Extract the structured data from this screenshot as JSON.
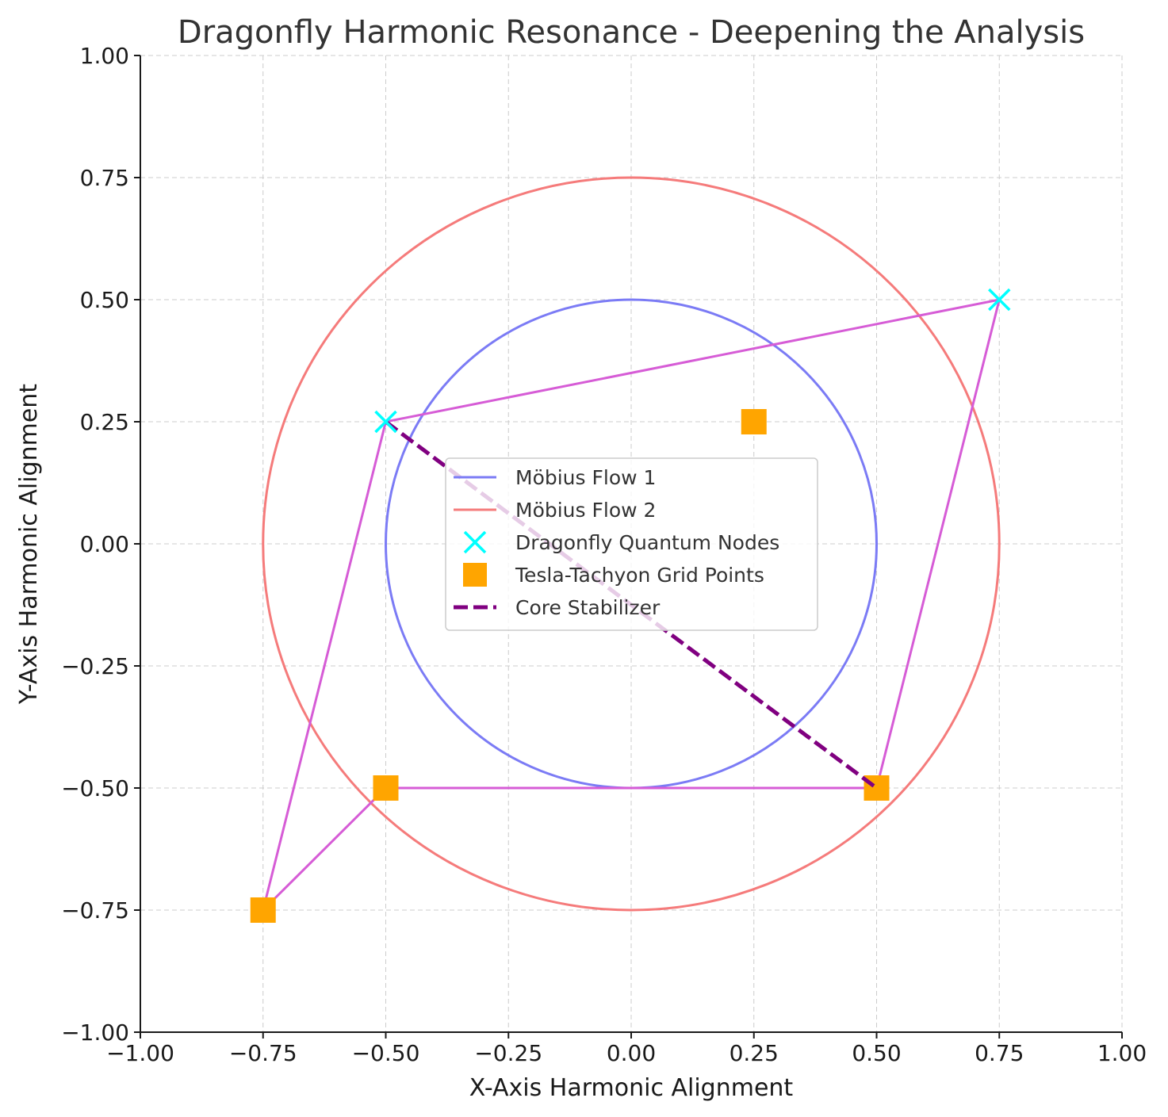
{
  "chart_data": {
    "type": "line",
    "title": "Dragonfly Harmonic Resonance - Deepening the Analysis",
    "xlabel": "X-Axis Harmonic Alignment",
    "ylabel": "Y-Axis Harmonic Alignment",
    "xlim": [
      -1.0,
      1.0
    ],
    "ylim": [
      -1.0,
      1.0
    ],
    "xticks": [
      "−1.00",
      "−0.75",
      "−0.50",
      "−0.25",
      "0.00",
      "0.25",
      "0.50",
      "0.75",
      "1.00"
    ],
    "yticks": [
      "−1.00",
      "−0.75",
      "−0.50",
      "−0.25",
      "0.00",
      "0.25",
      "0.50",
      "0.75",
      "1.00"
    ],
    "grid": true,
    "legend_position": "center",
    "series": [
      {
        "name": "Möbius Flow 1",
        "kind": "circle",
        "center": [
          0,
          0
        ],
        "radius": 0.5,
        "color": "#7b7bf5"
      },
      {
        "name": "Möbius Flow 2",
        "kind": "circle",
        "center": [
          0,
          0
        ],
        "radius": 0.75,
        "color": "#f57b7b"
      },
      {
        "name": "Dragonfly Quantum Nodes",
        "kind": "scatter-x",
        "color": "#00ffff",
        "points": [
          [
            -0.5,
            0.25
          ],
          [
            0.75,
            0.5
          ]
        ]
      },
      {
        "name": "Tesla-Tachyon Grid Points",
        "kind": "scatter-square",
        "color": "#ffa500",
        "points": [
          [
            0.25,
            0.25
          ],
          [
            -0.5,
            -0.5
          ],
          [
            0.5,
            -0.5
          ],
          [
            -0.75,
            -0.75
          ]
        ]
      },
      {
        "name": "Core Stabilizer",
        "kind": "dashed-line",
        "color": "#800080",
        "points": [
          [
            -0.5,
            0.25
          ],
          [
            0.5,
            -0.5
          ]
        ]
      }
    ],
    "connector": {
      "color": "#d65cd6",
      "points": [
        [
          -0.75,
          -0.75
        ],
        [
          -0.5,
          0.25
        ],
        [
          0.75,
          0.5
        ],
        [
          0.5,
          -0.5
        ],
        [
          -0.5,
          -0.5
        ],
        [
          -0.75,
          -0.75
        ]
      ]
    }
  }
}
